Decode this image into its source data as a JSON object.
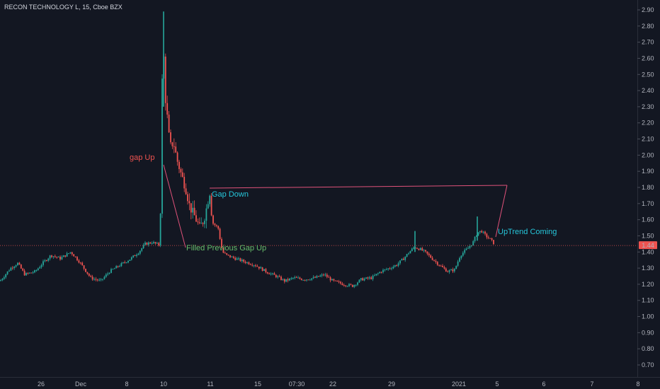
{
  "header": {
    "title": "RECON TECHNOLOGY L, 15, Cboe BZX"
  },
  "colors": {
    "background": "#131722",
    "up": "#26a69a",
    "down": "#ef5350",
    "axis_text": "#b2b5be",
    "annotation_line": "#e0527a",
    "price_line": "#ef5350"
  },
  "chart_data": {
    "type": "candlestick",
    "title": "RECON TECHNOLOGY L, 15, Cboe BZX",
    "y_axis": {
      "ticks": [
        "2.90",
        "2.80",
        "2.70",
        "2.60",
        "2.50",
        "2.40",
        "2.30",
        "2.20",
        "2.10",
        "2.00",
        "1.90",
        "1.80",
        "1.70",
        "1.60",
        "1.50",
        "1.40",
        "1.30",
        "1.20",
        "1.10",
        "1.00",
        "0.90",
        "0.80",
        "0.70"
      ],
      "range": [
        0.62,
        2.94
      ]
    },
    "x_axis": {
      "ticks": [
        "26",
        "Dec",
        "8",
        "10",
        "11",
        "15",
        "07:30",
        "22",
        "29",
        "2021",
        "5",
        "6",
        "7",
        "8"
      ]
    },
    "last_price": {
      "label": "1.44",
      "value": 1.44
    },
    "grid": false,
    "annotations": {
      "gap_up": "gap Up",
      "gap_down": "Gap Down",
      "filled": "Filled Previous Gap Up",
      "uptrend": "UpTrend Coming"
    }
  }
}
